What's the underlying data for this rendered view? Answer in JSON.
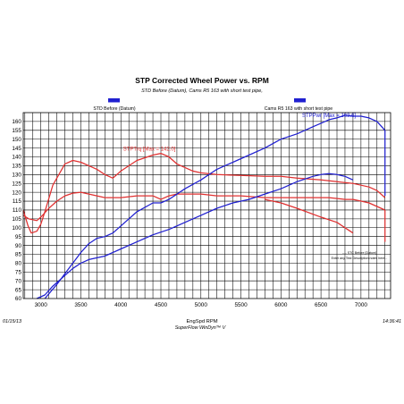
{
  "chart_data": {
    "type": "line",
    "title": "STP Corrected Wheel Power vs. RPM",
    "subtitle": "STD Before (Datum), Cams R5 163 with short test pipe,",
    "xlabel": "EngSpd RPM",
    "ylabel": "",
    "xlim": [
      2780,
      7370
    ],
    "ylim": [
      60,
      165
    ],
    "x_ticks": [
      3000,
      3500,
      4000,
      4500,
      5000,
      5500,
      6000,
      6500,
      7000
    ],
    "y_ticks": [
      60,
      65,
      70,
      75,
      80,
      85,
      90,
      95,
      100,
      105,
      110,
      115,
      120,
      125,
      130,
      135,
      140,
      145,
      150,
      155,
      160
    ],
    "grid": true,
    "legend": [
      {
        "label": "STD Before (Datum)",
        "color": "#2020d0"
      },
      {
        "label": "Cams R5 163 with short test pipe",
        "color": "#2020d0"
      }
    ],
    "annotations": [
      {
        "text": "STPTrq [Max = 142.0]",
        "color": "#e03030",
        "x": 4400,
        "y": 142
      },
      {
        "text": "STPPwr [Max = 163.6]",
        "color": "#2020d0",
        "x": 6600,
        "y": 163.6
      }
    ],
    "side_notes": [
      "---- STC Before [Datum]",
      "Enter any Test Description notes here..."
    ],
    "series": [
      {
        "color": "#e03030",
        "x": [
          2780,
          2840,
          2880,
          2950,
          3000,
          3050,
          3150,
          3300,
          3400,
          3500,
          3600,
          3700,
          3800,
          3900,
          4000,
          4200,
          4400,
          4500,
          4600,
          4700,
          4800,
          4900,
          5000,
          5200,
          5500,
          5800,
          6000,
          6200,
          6500,
          6700,
          6900,
          7000,
          7100,
          7200,
          7300
        ],
        "values": [
          110,
          101,
          97,
          98,
          102,
          109,
          124,
          136,
          138,
          137,
          135,
          133,
          130,
          128,
          132,
          138,
          141,
          142,
          140,
          136,
          134,
          132,
          131,
          130,
          129.5,
          129,
          129,
          128,
          127,
          126,
          125,
          124,
          123,
          121,
          117
        ]
      },
      {
        "color": "#e03030",
        "x": [
          2780,
          2850,
          2950,
          3000,
          3100,
          3200,
          3300,
          3400,
          3500,
          3600,
          3700,
          3800,
          3900,
          4000,
          4200,
          4400,
          4500,
          4600,
          4700,
          4800,
          5000,
          5200,
          5500,
          5800,
          6000,
          6200,
          6400,
          6600,
          6800,
          6900,
          7000,
          7100,
          7200,
          7300
        ],
        "values": [
          107,
          105,
          104,
          106,
          111,
          115,
          118,
          119.5,
          120,
          119,
          118,
          117,
          117,
          117,
          118,
          118,
          116,
          118,
          119,
          119,
          119,
          118,
          118,
          117,
          117,
          117,
          117,
          117,
          116,
          116,
          115,
          114,
          112,
          110
        ]
      },
      {
        "color": "#e03030",
        "x": [
          5800,
          6000,
          6200,
          6500,
          6700,
          6800,
          6900
        ],
        "values": [
          116,
          114,
          111,
          106,
          103,
          100,
          97
        ]
      },
      {
        "color": "#2020d0",
        "x": [
          3050,
          3200,
          3400,
          3500,
          3600,
          3700,
          3800,
          3900,
          4000,
          4200,
          4400,
          4500,
          4600,
          4800,
          5000,
          5200,
          5500,
          5800,
          6000,
          6200,
          6400,
          6500,
          6600,
          6700,
          6800,
          6900,
          7000,
          7100,
          7200,
          7300
        ],
        "values": [
          60,
          68,
          80,
          86,
          91,
          94,
          95,
          97,
          101,
          109,
          114,
          114,
          116,
          122,
          127,
          133,
          139,
          145,
          150,
          153,
          157,
          159,
          161,
          162,
          163.6,
          163,
          163,
          162,
          160,
          155
        ]
      },
      {
        "color": "#2020d0",
        "x": [
          2950,
          3050,
          3150,
          3300,
          3400,
          3500,
          3600,
          3800,
          4000,
          4200,
          4400,
          4600,
          4800,
          5000,
          5200,
          5400,
          5600,
          5800,
          6000,
          6200,
          6400,
          6500,
          6600,
          6700,
          6800,
          6900
        ],
        "values": [
          60,
          62,
          67,
          73,
          77,
          80,
          82,
          84,
          88,
          92,
          96,
          99,
          103,
          107,
          111,
          114,
          116,
          119,
          122,
          126,
          129,
          130,
          130.5,
          130,
          129,
          127
        ]
      }
    ]
  },
  "footer": {
    "date": "01/15/13",
    "software": "SuperFlow WinDyn™ V",
    "time": "14:36:41"
  }
}
